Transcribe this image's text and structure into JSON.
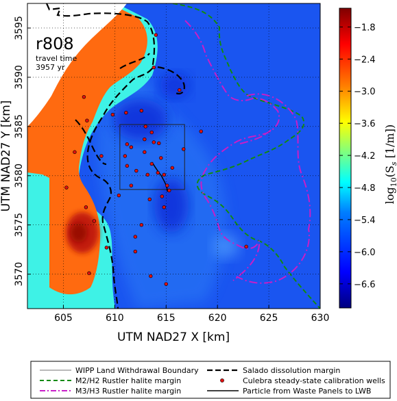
{
  "map": {
    "run_id": "r808",
    "travel_time_label": "travel time",
    "travel_time_value": "3957 yr",
    "x_axis_label": "UTM NAD27 X [km]",
    "y_axis_label": "UTM NAD27 Y [km]",
    "x_ticks": [
      "605",
      "610",
      "615",
      "620",
      "625",
      "630"
    ],
    "y_ticks": [
      "3570",
      "3575",
      "3580",
      "3585",
      "3590",
      "3595"
    ],
    "x_range": [
      601.5,
      630
    ],
    "y_range": [
      3566.5,
      3597.5
    ]
  },
  "colorbar": {
    "label_prefix": "log",
    "label_sub": "10",
    "label_main": "(S",
    "label_s": "s",
    "label_unit": " [1/m])",
    "ticks": [
      "−1.8",
      "−2.4",
      "−3.0",
      "−3.6",
      "−4.2",
      "−4.8",
      "−5.4",
      "−6.0",
      "−6.6"
    ],
    "range": [
      -7.05,
      -1.45
    ],
    "colormap": [
      "#00007f",
      "#0000ff",
      "#007fff",
      "#00ffff",
      "#7fff7f",
      "#ffff00",
      "#ff7f00",
      "#ff0000",
      "#7f0000"
    ]
  },
  "legend": {
    "items": [
      {
        "label": "WIPP Land Withdrawal Boundary",
        "style": "thin-black-solid"
      },
      {
        "label": "Salado dissolution margin",
        "style": "black-dashed"
      },
      {
        "label": "M2/H2 Rustler halite margin",
        "style": "green-dashed"
      },
      {
        "label": "Culebra steady-state calibration wells",
        "style": "red-dot"
      },
      {
        "label": "M3/H3 Rustler halite margin",
        "style": "magenta-dashdot"
      },
      {
        "label": "Particle from Waste Panels to LWB",
        "style": "black-solid"
      }
    ]
  },
  "colors": {
    "orange_zone": "#ff6a10",
    "red_core": "#c21a08",
    "cyan_zone": "#3ef2e6",
    "blue_zone": "#1a55f0",
    "deep_blue": "#0a2ad8",
    "salado": "#000000",
    "m2h2": "#118a11",
    "m3h3": "#c81ec8",
    "wells": "#e01010"
  },
  "wells": [
    [
      607.0,
      3588.0
    ],
    [
      609.8,
      3586.2
    ],
    [
      607.3,
      3585.6
    ],
    [
      606.1,
      3582.4
    ],
    [
      608.7,
      3582.0
    ],
    [
      605.3,
      3578.8
    ],
    [
      608.0,
      3575.4
    ],
    [
      607.5,
      3570.1
    ],
    [
      607.2,
      3576.8
    ],
    [
      609.2,
      3572.7
    ],
    [
      611.1,
      3586.4
    ],
    [
      612.6,
      3586.6
    ],
    [
      613.6,
      3584.4
    ],
    [
      612.9,
      3583.7
    ],
    [
      613.8,
      3583.4
    ],
    [
      611.6,
      3582.9
    ],
    [
      614.3,
      3583.3
    ],
    [
      611.0,
      3582.0
    ],
    [
      612.9,
      3582.4
    ],
    [
      613.6,
      3581.2
    ],
    [
      614.5,
      3581.8
    ],
    [
      611.2,
      3581.0
    ],
    [
      612.1,
      3580.5
    ],
    [
      613.2,
      3580.1
    ],
    [
      614.2,
      3580.3
    ],
    [
      614.8,
      3580.1
    ],
    [
      615.1,
      3579.0
    ],
    [
      615.3,
      3578.5
    ],
    [
      614.6,
      3577.9
    ],
    [
      611.6,
      3579.0
    ],
    [
      610.4,
      3578.0
    ],
    [
      613.4,
      3577.6
    ],
    [
      612.6,
      3575.0
    ],
    [
      612.0,
      3573.8
    ],
    [
      614.8,
      3576.8
    ],
    [
      612.0,
      3572.3
    ],
    [
      613.5,
      3569.8
    ],
    [
      615.0,
      3569.0
    ],
    [
      616.7,
      3582.7
    ],
    [
      618.4,
      3584.5
    ],
    [
      613.8,
      3591.0
    ],
    [
      614.0,
      3594.3
    ],
    [
      616.3,
      3588.7
    ],
    [
      611.2,
      3583.2
    ],
    [
      613.0,
      3585.0
    ],
    [
      622.8,
      3572.8
    ],
    [
      615.6,
      3580.8
    ]
  ],
  "wipp_box": {
    "x": [
      610.5,
      616.8
    ],
    "y": [
      3578.6,
      3585.2
    ]
  }
}
